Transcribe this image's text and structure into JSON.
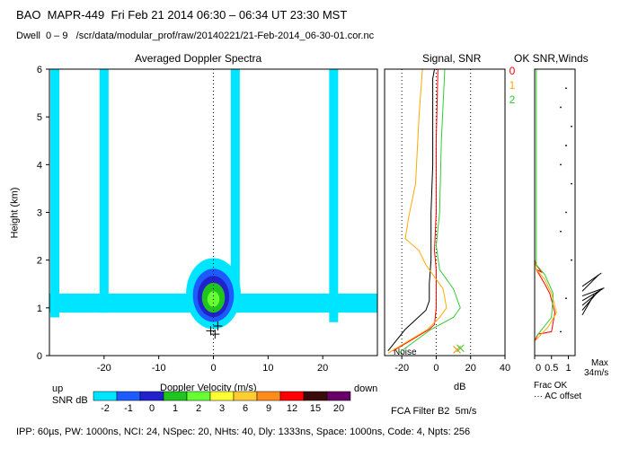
{
  "header": {
    "line1": "BAO  MAPR-449  Fri Feb 21 2014 06:30 – 06:34 UT 23:30 MST",
    "line2": "Dwell  0 – 9   /scr/data/modular_prof/raw/20140221/21-Feb-2014_06-30-01.cor.nc"
  },
  "panels": {
    "spectra_title": "Averaged Doppler Spectra",
    "signal_title": "Signal, SNR",
    "winds_title": "OK SNR,Winds"
  },
  "colorbar": {
    "up": "up",
    "down": "down",
    "label": "SNR dB",
    "levels": [
      "-2",
      "-1",
      "0",
      "1",
      "2",
      "3",
      "6",
      "9",
      "12",
      "15",
      "20"
    ],
    "colors": [
      "#00e5ff",
      "#1e5bff",
      "#2222cc",
      "#1fc41f",
      "#66ff33",
      "#ffff33",
      "#ffcc33",
      "#ff8c1a",
      "#ff0000",
      "#3a0a0a",
      "#660066"
    ]
  },
  "footer": {
    "filter": "FCA Filter B2  5m/s",
    "params": "IPP: 60µs, PW: 1000ns, NCI: 24, NSpec: 20, NHts: 40, Dly: 1333ns, Space: 1000ns, Code: 4, Npts: 256"
  },
  "chart_data": [
    {
      "type": "heatmap",
      "title": "Averaged Doppler Spectra",
      "xlabel": "Doppler Velocity (m/s)",
      "ylabel": "Height (km)",
      "xlim": [
        -30,
        30
      ],
      "ylim": [
        0,
        6
      ],
      "xticks": [
        -20,
        -10,
        0,
        10,
        20
      ],
      "yticks": [
        0,
        1,
        2,
        3,
        4,
        5,
        6
      ],
      "features": [
        {
          "name": "ground clutter core",
          "x_range": [
            -5,
            5
          ],
          "y_range": [
            0.55,
            2.3
          ],
          "peak_snr_db": 3
        },
        {
          "name": "interference band",
          "x": -29,
          "y_range": [
            0.8,
            6
          ]
        },
        {
          "name": "interference band",
          "x": -20,
          "y_range": [
            0.9,
            6
          ]
        },
        {
          "name": "interference band",
          "x": 4,
          "y_range": [
            0.9,
            6
          ]
        },
        {
          "name": "interference band",
          "x": 22,
          "y_range": [
            0.7,
            6
          ]
        },
        {
          "name": "weak layer",
          "x_range": [
            -30,
            30
          ],
          "y_range": [
            0.9,
            1.3
          ]
        }
      ]
    },
    {
      "type": "line",
      "title": "Signal, SNR",
      "xlabel": "dB",
      "xlim": [
        -30,
        40
      ],
      "ylim": [
        0,
        6
      ],
      "xticks": [
        -20,
        0,
        20,
        40
      ],
      "annotation": "Noise",
      "series": [
        {
          "color": "#000000",
          "x": [
            -28,
            -18,
            -12,
            -6,
            -4,
            -4,
            -3,
            -3,
            -3,
            -2,
            -2,
            -2,
            -1
          ],
          "y": [
            0.1,
            0.55,
            0.75,
            0.95,
            1.15,
            1.5,
            2.0,
            2.5,
            3.0,
            4.0,
            5.0,
            5.8,
            6.0
          ]
        },
        {
          "color": "#ff0000",
          "x": [
            -25,
            -4,
            -1,
            0,
            0,
            0,
            -1,
            0,
            0,
            1
          ],
          "y": [
            0.1,
            0.55,
            0.65,
            1.0,
            1.4,
            1.8,
            2.2,
            3.0,
            4.5,
            6.0
          ]
        },
        {
          "color": "#ffaa00",
          "x": [
            -28,
            -5,
            2,
            6,
            4,
            -6,
            -10,
            -18,
            -16,
            -12,
            -10,
            -8
          ],
          "y": [
            0.05,
            0.55,
            0.8,
            1.0,
            1.4,
            1.9,
            2.2,
            2.45,
            2.9,
            3.6,
            5.0,
            6.0
          ]
        },
        {
          "color": "#33cc33",
          "x": [
            -22,
            -3,
            10,
            14,
            10,
            2,
            0,
            2,
            3,
            5
          ],
          "y": [
            0.05,
            0.55,
            0.8,
            1.0,
            1.4,
            1.8,
            2.3,
            3.0,
            4.5,
            6.0
          ]
        }
      ]
    },
    {
      "type": "line",
      "title": "OK SNR,Winds",
      "xlabel": "Frac OK",
      "xlim": [
        0,
        1.2
      ],
      "ylim": [
        0,
        6
      ],
      "xticks": [
        0,
        0.5,
        1
      ],
      "xtick_labels": [
        "0",
        "0.5",
        "1"
      ],
      "legend": [
        "0",
        "1",
        "2"
      ],
      "legend_colors": [
        "#ff0000",
        "#ffaa00",
        "#33cc33"
      ],
      "notes": [
        "Frac OK",
        "··· AC offset"
      ],
      "wind_scale": [
        "Max",
        "34m/s"
      ],
      "series": [
        {
          "name": "0",
          "x": [
            0,
            0,
            0.1,
            0.5,
            0.6,
            0.45,
            0.3,
            0.05,
            0.2,
            0.05,
            0,
            0
          ],
          "y": [
            0,
            0.3,
            0.45,
            0.5,
            0.9,
            1.3,
            1.5,
            1.8,
            1.75,
            1.9,
            2.0,
            6.0
          ]
        },
        {
          "name": "1",
          "x": [
            0,
            0.4,
            0.65,
            0.5,
            0.3,
            0.05,
            0,
            0
          ],
          "y": [
            0.3,
            0.6,
            0.9,
            1.3,
            1.6,
            1.8,
            2.0,
            6.0
          ]
        },
        {
          "name": "2",
          "x": [
            0.05,
            0.5,
            0.55,
            0.3,
            0.05,
            0.05,
            0.05
          ],
          "y": [
            0.4,
            0.8,
            1.3,
            1.7,
            1.9,
            2.5,
            6.0
          ]
        }
      ]
    }
  ]
}
